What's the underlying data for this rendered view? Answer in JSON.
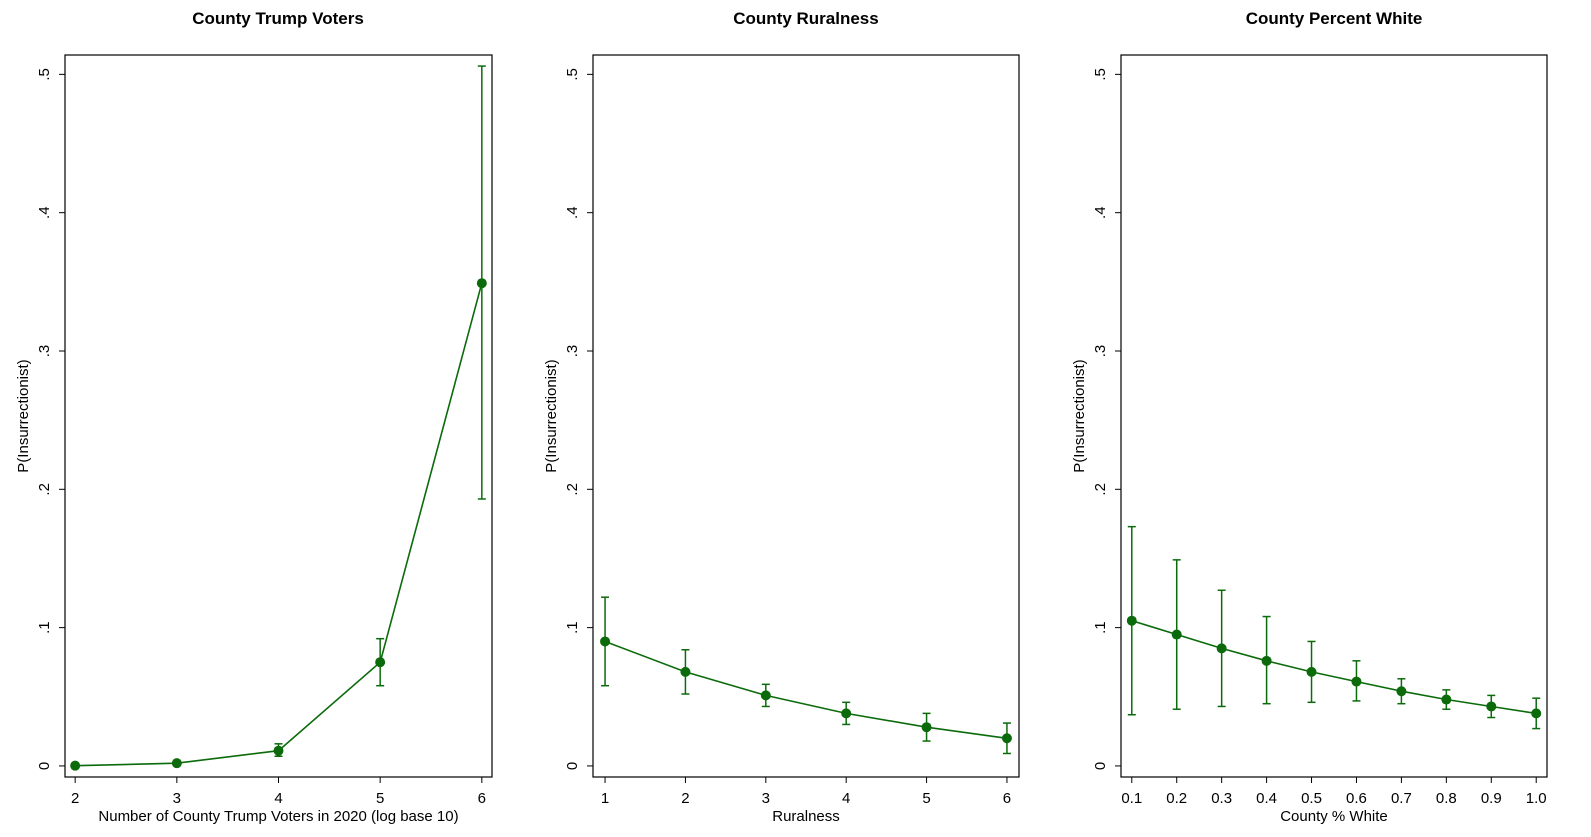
{
  "colors": {
    "series": "#0b6b0b",
    "axis": "#000000",
    "background": "#ffffff"
  },
  "chart_data": [
    {
      "type": "line",
      "title": "County Trump Voters",
      "xlabel": "Number of County Trump Voters in 2020 (log base 10)",
      "ylabel": "P(Insurrectionist)",
      "xlim": [
        1.9,
        6.1
      ],
      "ylim": [
        -0.008,
        0.514
      ],
      "xticks": [
        2,
        3,
        4,
        5,
        6
      ],
      "xtick_labels": [
        "2",
        "3",
        "4",
        "5",
        "6"
      ],
      "yticks": [
        0,
        0.1,
        0.2,
        0.3,
        0.4,
        0.5
      ],
      "ytick_labels": [
        "0",
        ".1",
        ".2",
        ".3",
        ".4",
        ".5"
      ],
      "grid": false,
      "points": [
        {
          "x": 2,
          "y": 0.0002,
          "lo": null,
          "hi": null
        },
        {
          "x": 3,
          "y": 0.002,
          "lo": null,
          "hi": null
        },
        {
          "x": 4,
          "y": 0.011,
          "lo": 0.007,
          "hi": 0.016
        },
        {
          "x": 5,
          "y": 0.075,
          "lo": 0.058,
          "hi": 0.092
        },
        {
          "x": 6,
          "y": 0.349,
          "lo": 0.193,
          "hi": 0.506
        }
      ]
    },
    {
      "type": "line",
      "title": "County Ruralness",
      "xlabel": "Ruralness",
      "ylabel": "P(Insurrectionist)",
      "xlim": [
        0.85,
        6.15
      ],
      "ylim": [
        -0.008,
        0.514
      ],
      "xticks": [
        1,
        2,
        3,
        4,
        5,
        6
      ],
      "xtick_labels": [
        "1",
        "2",
        "3",
        "4",
        "5",
        "6"
      ],
      "yticks": [
        0,
        0.1,
        0.2,
        0.3,
        0.4,
        0.5
      ],
      "ytick_labels": [
        "0",
        ".1",
        ".2",
        ".3",
        ".4",
        ".5"
      ],
      "grid": false,
      "points": [
        {
          "x": 1,
          "y": 0.09,
          "lo": 0.058,
          "hi": 0.122
        },
        {
          "x": 2,
          "y": 0.068,
          "lo": 0.052,
          "hi": 0.084
        },
        {
          "x": 3,
          "y": 0.051,
          "lo": 0.043,
          "hi": 0.059
        },
        {
          "x": 4,
          "y": 0.038,
          "lo": 0.03,
          "hi": 0.046
        },
        {
          "x": 5,
          "y": 0.028,
          "lo": 0.018,
          "hi": 0.038
        },
        {
          "x": 6,
          "y": 0.02,
          "lo": 0.009,
          "hi": 0.031
        }
      ]
    },
    {
      "type": "line",
      "title": "County Percent White",
      "xlabel": "County % White",
      "ylabel": "P(Insurrectionist)",
      "xlim": [
        0.076,
        1.024
      ],
      "ylim": [
        -0.008,
        0.514
      ],
      "xticks": [
        0.1,
        0.2,
        0.3,
        0.4,
        0.5,
        0.6,
        0.7,
        0.8,
        0.9,
        1.0
      ],
      "xtick_labels": [
        "0.1",
        "0.2",
        "0.3",
        "0.4",
        "0.5",
        "0.6",
        "0.7",
        "0.8",
        "0.9",
        "1.0"
      ],
      "yticks": [
        0,
        0.1,
        0.2,
        0.3,
        0.4,
        0.5
      ],
      "ytick_labels": [
        "0",
        ".1",
        ".2",
        ".3",
        ".4",
        ".5"
      ],
      "grid": false,
      "points": [
        {
          "x": 0.1,
          "y": 0.105,
          "lo": 0.037,
          "hi": 0.173
        },
        {
          "x": 0.2,
          "y": 0.095,
          "lo": 0.041,
          "hi": 0.149
        },
        {
          "x": 0.3,
          "y": 0.085,
          "lo": 0.043,
          "hi": 0.127
        },
        {
          "x": 0.4,
          "y": 0.076,
          "lo": 0.045,
          "hi": 0.108
        },
        {
          "x": 0.5,
          "y": 0.068,
          "lo": 0.046,
          "hi": 0.09
        },
        {
          "x": 0.6,
          "y": 0.061,
          "lo": 0.047,
          "hi": 0.076
        },
        {
          "x": 0.7,
          "y": 0.054,
          "lo": 0.045,
          "hi": 0.063
        },
        {
          "x": 0.8,
          "y": 0.048,
          "lo": 0.041,
          "hi": 0.055
        },
        {
          "x": 0.9,
          "y": 0.043,
          "lo": 0.035,
          "hi": 0.051
        },
        {
          "x": 1.0,
          "y": 0.038,
          "lo": 0.027,
          "hi": 0.049
        }
      ]
    }
  ]
}
